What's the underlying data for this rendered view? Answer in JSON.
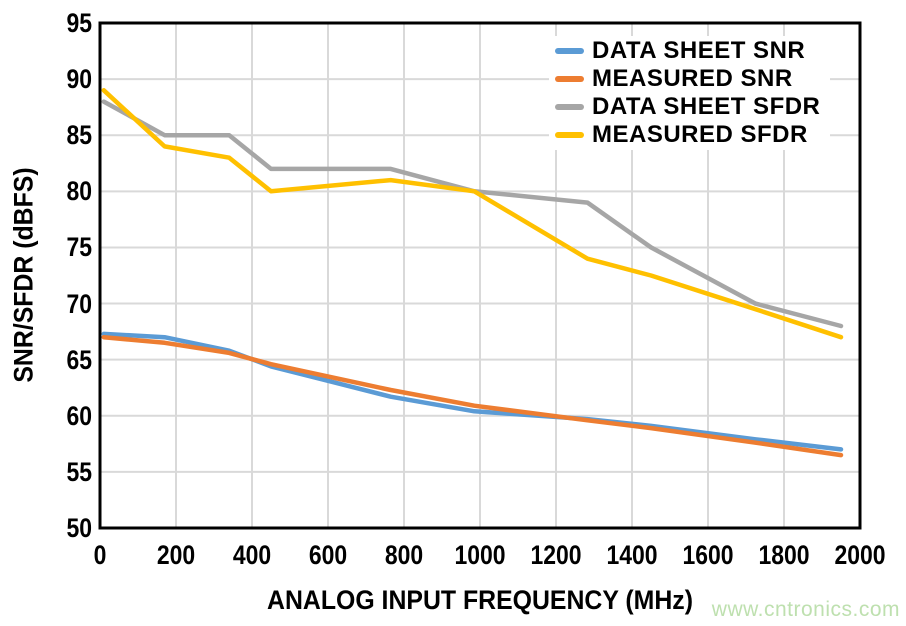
{
  "watermark": {
    "text": "www.cntronics.com",
    "color": "#bee0af"
  },
  "chart_data": {
    "type": "line",
    "title": "",
    "xlabel": "ANALOG INPUT FREQUENCY (MHz)",
    "ylabel": "SNR/SFDR (dBFS)",
    "xlim": [
      0,
      2000
    ],
    "ylim": [
      50,
      95
    ],
    "x_ticks": [
      0,
      200,
      400,
      600,
      800,
      1000,
      1200,
      1400,
      1600,
      1800,
      2000
    ],
    "y_ticks": [
      50,
      55,
      60,
      65,
      70,
      75,
      80,
      85,
      90,
      95
    ],
    "grid": true,
    "gridline_color": "#d9d9d9",
    "axis_color": "#000000",
    "legend_position": "top-right-inside",
    "line_width": 4.5,
    "x": [
      10,
      170,
      340,
      450,
      765,
      985,
      1283,
      1450,
      1725,
      1950
    ],
    "series": [
      {
        "name": "DATA SHEET SNR",
        "color": "#5b9bd5",
        "values": [
          67.3,
          67.0,
          65.8,
          64.4,
          61.7,
          60.4,
          59.7,
          59.1,
          57.9,
          57.0
        ]
      },
      {
        "name": "MEASURED SNR",
        "color": "#ed7d31",
        "values": [
          67.0,
          66.5,
          65.6,
          64.6,
          62.3,
          60.9,
          59.6,
          58.9,
          57.6,
          56.5
        ]
      },
      {
        "name": "DATA SHEET SFDR",
        "color": "#a6a6a6",
        "values": [
          88.0,
          85.0,
          85.0,
          82.0,
          82.0,
          80.0,
          79.0,
          75.0,
          70.0,
          68.0
        ]
      },
      {
        "name": "MEASURED SFDR",
        "color": "#ffc000",
        "values": [
          89.0,
          84.0,
          83.0,
          80.0,
          81.0,
          80.0,
          74.0,
          72.5,
          69.5,
          67.0
        ]
      }
    ]
  }
}
